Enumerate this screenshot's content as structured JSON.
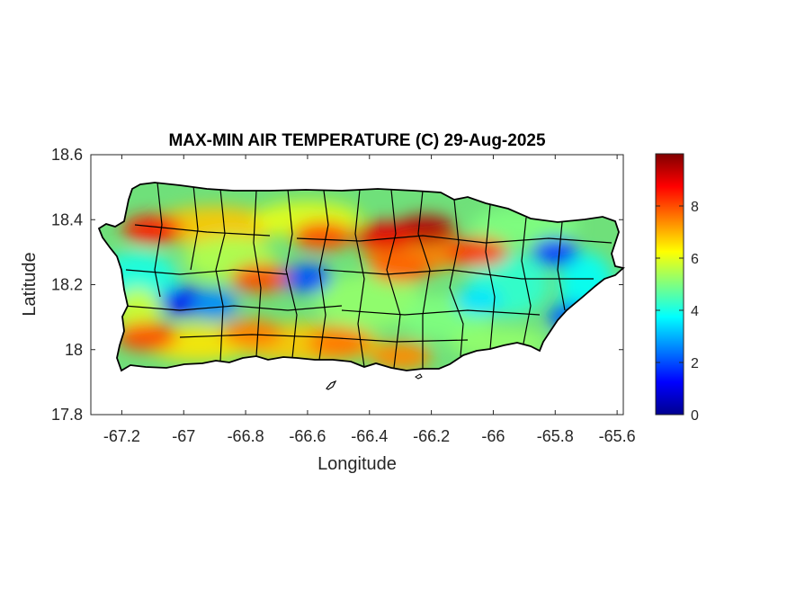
{
  "title": "MAX-MIN AIR TEMPERATURE (C) 29-Aug-2025",
  "xlabel": "Longitude",
  "ylabel": "Latitude",
  "xlim": [
    -67.3,
    -65.58
  ],
  "ylim": [
    17.8,
    18.6
  ],
  "xticks": [
    {
      "value": -67.2,
      "label": "-67.2"
    },
    {
      "value": -67.0,
      "label": "-67"
    },
    {
      "value": -66.8,
      "label": "-66.8"
    },
    {
      "value": -66.6,
      "label": "-66.6"
    },
    {
      "value": -66.4,
      "label": "-66.4"
    },
    {
      "value": -66.2,
      "label": "-66.2"
    },
    {
      "value": -66.0,
      "label": "-66"
    },
    {
      "value": -65.8,
      "label": "-65.8"
    },
    {
      "value": -65.6,
      "label": "-65.6"
    }
  ],
  "yticks": [
    {
      "value": 18.6,
      "label": "18.6"
    },
    {
      "value": 18.4,
      "label": "18.4"
    },
    {
      "value": 18.2,
      "label": "18.2"
    },
    {
      "value": 18.0,
      "label": "18"
    },
    {
      "value": 17.8,
      "label": "17.8"
    }
  ],
  "colorbar": {
    "colormap": "jet",
    "range": [
      0,
      10
    ],
    "ticks": [
      {
        "value": 0,
        "label": "0"
      },
      {
        "value": 2,
        "label": "2"
      },
      {
        "value": 4,
        "label": "4"
      },
      {
        "value": 6,
        "label": "6"
      },
      {
        "value": 8,
        "label": "8"
      }
    ]
  },
  "map": {
    "region": "Puerto Rico",
    "outline_color": "#000000",
    "hotspots": [
      {
        "lon": -66.22,
        "lat": 18.37,
        "value": 9.5
      },
      {
        "lon": -66.35,
        "lat": 18.35,
        "value": 9.0
      },
      {
        "lon": -66.05,
        "lat": 18.3,
        "value": 8.2
      },
      {
        "lon": -67.1,
        "lat": 18.37,
        "value": 8.5
      },
      {
        "lon": -66.55,
        "lat": 18.35,
        "value": 8.0
      },
      {
        "lon": -66.3,
        "lat": 18.25,
        "value": 7.8
      },
      {
        "lon": -66.75,
        "lat": 18.22,
        "value": 8.0
      },
      {
        "lon": -67.12,
        "lat": 18.04,
        "value": 8.0
      },
      {
        "lon": -66.78,
        "lat": 18.05,
        "value": 7.5
      },
      {
        "lon": -66.5,
        "lat": 18.02,
        "value": 7.6
      },
      {
        "lon": -66.3,
        "lat": 17.98,
        "value": 7.4
      }
    ],
    "coldspots": [
      {
        "lon": -67.0,
        "lat": 18.15,
        "value": 1.2
      },
      {
        "lon": -66.6,
        "lat": 18.22,
        "value": 2.0
      },
      {
        "lon": -65.8,
        "lat": 18.3,
        "value": 1.8
      },
      {
        "lon": -66.9,
        "lat": 18.14,
        "value": 2.6
      },
      {
        "lon": -65.75,
        "lat": 18.1,
        "value": 2.2
      },
      {
        "lon": -66.05,
        "lat": 18.15,
        "value": 3.5
      }
    ]
  }
}
